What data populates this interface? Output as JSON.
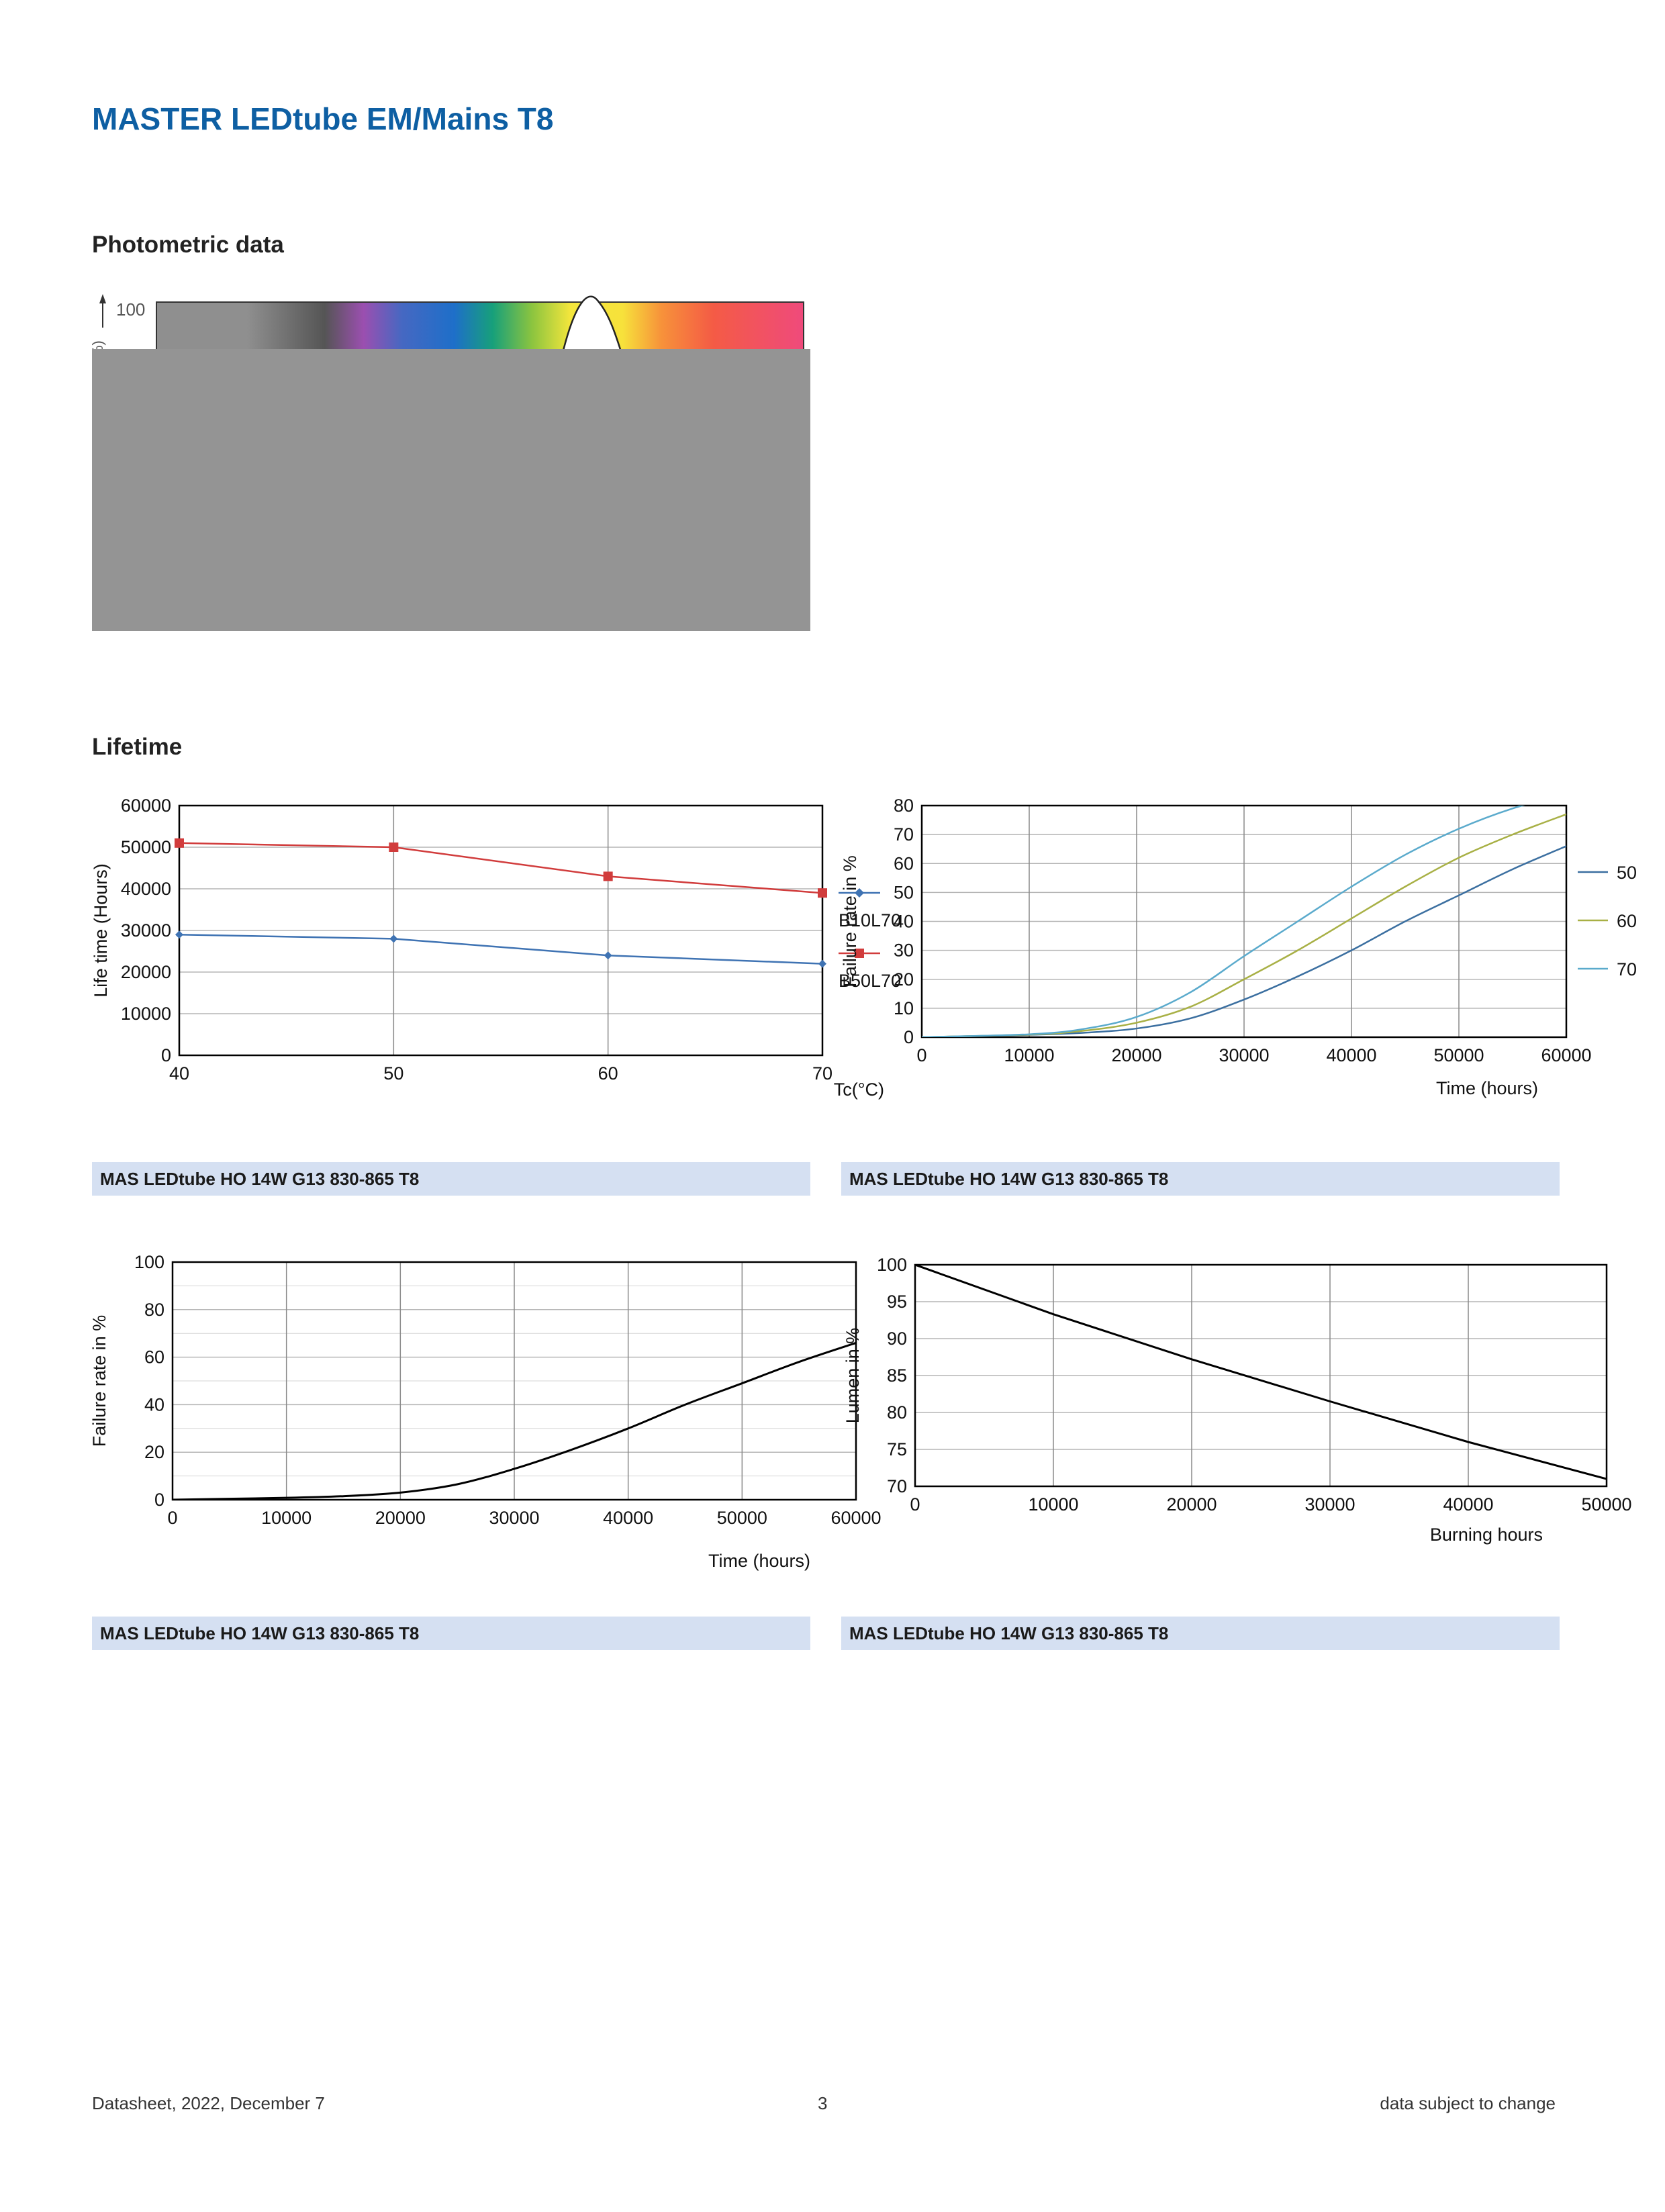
{
  "title": "MASTER LEDtube EM/Mains T8",
  "sections": {
    "photometric": "Photometric data",
    "lifetime": "Lifetime"
  },
  "colors": {
    "title_blue": "#0e5fa3",
    "caption_bar": "#d5e0f2",
    "series_red": "#d13c3c",
    "series_blue": "#3f73b3",
    "series_50": "#3b6fa0",
    "series_60": "#a8b045",
    "series_70": "#5aaacc"
  },
  "captions": [
    "MAS LEDtube HO 14W G13 830-865 T8",
    "MAS LEDtube HO 14W G13 830-865 T8",
    "MAS LEDtube HO 14W G13 830-865 T8",
    "MAS LEDtube HO 14W G13 830-865 T8"
  ],
  "footer": {
    "left": "Datasheet, 2022, December 7",
    "center": "3",
    "right": "data subject to change"
  },
  "chart_data": [
    {
      "id": "spectrum",
      "type": "area",
      "y_tick_label": "100",
      "y_axis_fragment": "%)",
      "note": ""
    },
    {
      "id": "lifetime-vs-tc",
      "type": "line",
      "xlabel": "Tc(°C)",
      "ylabel": "Life time (Hours)",
      "x": [
        40,
        50,
        60,
        70
      ],
      "xlim": [
        40,
        70
      ],
      "ylim": [
        0,
        60000
      ],
      "x_ticks": [
        "40",
        "50",
        "60",
        "70"
      ],
      "y_ticks": [
        "0",
        "10000",
        "20000",
        "30000",
        "40000",
        "50000",
        "60000"
      ],
      "series": [
        {
          "name": "B10L70",
          "color": "#3f73b3",
          "marker": "diamond",
          "values": [
            29000,
            28000,
            24000,
            22000
          ]
        },
        {
          "name": "B50L70",
          "color": "#d13c3c",
          "marker": "square",
          "values": [
            51000,
            50000,
            43000,
            39000
          ]
        }
      ],
      "legend": "right",
      "grid": true
    },
    {
      "id": "failure-by-temp",
      "type": "line",
      "xlabel": "Time (hours)",
      "ylabel": "Failure rate in %",
      "xlim": [
        0,
        60000
      ],
      "ylim": [
        0,
        80
      ],
      "x_ticks": [
        "0",
        "10000",
        "20000",
        "30000",
        "40000",
        "50000",
        "60000"
      ],
      "y_ticks": [
        "0",
        "10",
        "20",
        "30",
        "40",
        "50",
        "60",
        "70",
        "80"
      ],
      "x": [
        0,
        10000,
        15000,
        20000,
        25000,
        30000,
        35000,
        40000,
        45000,
        50000,
        55000,
        60000
      ],
      "series": [
        {
          "name": "50",
          "color": "#3b6fa0",
          "values": [
            0,
            0.8,
            1.5,
            3,
            6.5,
            13,
            21,
            30,
            40,
            49,
            58,
            66
          ]
        },
        {
          "name": "60",
          "color": "#a8b045",
          "values": [
            0,
            0.9,
            2.2,
            5,
            10.5,
            20,
            30,
            41,
            52,
            62,
            70,
            77
          ]
        },
        {
          "name": "70",
          "color": "#5aaacc",
          "values": [
            0,
            1,
            2.8,
            7,
            15.5,
            28,
            40,
            52,
            63,
            72,
            79,
            84
          ]
        }
      ],
      "legend": "right",
      "grid": true
    },
    {
      "id": "failure-rate",
      "type": "line",
      "xlabel": "Time (hours)",
      "ylabel": "Failure rate in %",
      "xlim": [
        0,
        60000
      ],
      "ylim": [
        0,
        100
      ],
      "x_ticks": [
        "0",
        "10000",
        "20000",
        "30000",
        "40000",
        "50000",
        "60000"
      ],
      "y_ticks": [
        "0",
        "20",
        "40",
        "60",
        "80",
        "100"
      ],
      "x": [
        0,
        10000,
        15000,
        20000,
        25000,
        30000,
        35000,
        40000,
        45000,
        50000,
        55000,
        60000
      ],
      "series": [
        {
          "name": "",
          "color": "#000000",
          "values": [
            0,
            0.8,
            1.5,
            3,
            6.5,
            13,
            21,
            30,
            40,
            49,
            58,
            66
          ]
        }
      ],
      "grid": true
    },
    {
      "id": "lumen-maintenance",
      "type": "line",
      "xlabel": "Burning hours",
      "ylabel": "Lumen in %",
      "xlim": [
        0,
        50000
      ],
      "ylim": [
        70,
        100
      ],
      "x_ticks": [
        "0",
        "10000",
        "20000",
        "30000",
        "40000",
        "50000"
      ],
      "y_ticks": [
        "70",
        "75",
        "80",
        "85",
        "90",
        "95",
        "100"
      ],
      "x": [
        0,
        10000,
        20000,
        30000,
        40000,
        50000
      ],
      "series": [
        {
          "name": "",
          "color": "#000000",
          "values": [
            100,
            93.3,
            87.2,
            81.5,
            76,
            71
          ]
        }
      ],
      "grid": true
    }
  ]
}
